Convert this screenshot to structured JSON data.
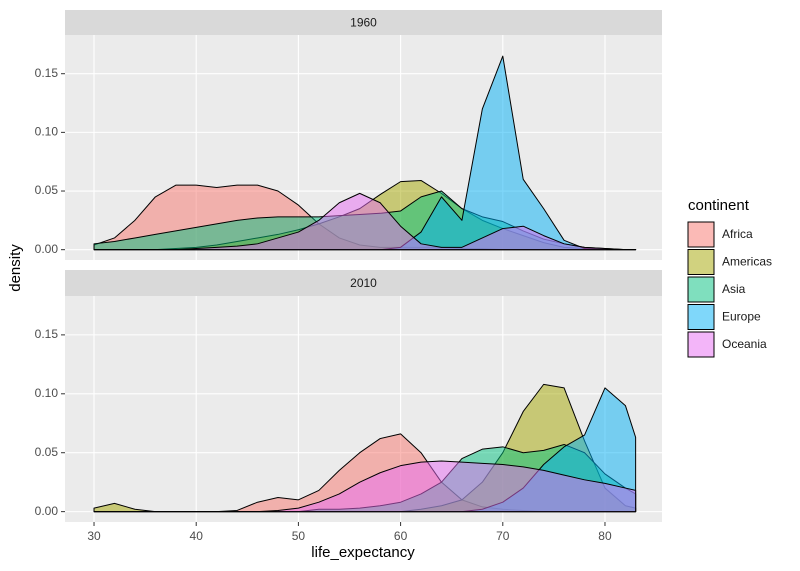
{
  "chart_data": {
    "type": "density",
    "x_label": "life_expectancy",
    "y_label": "density",
    "legend_title": "continent",
    "facets": [
      "1960",
      "2010"
    ],
    "x": [
      30,
      32,
      34,
      36,
      38,
      40,
      42,
      44,
      46,
      48,
      50,
      52,
      54,
      56,
      58,
      60,
      62,
      64,
      66,
      68,
      70,
      72,
      74,
      76,
      78,
      80,
      82,
      83
    ],
    "xlim": [
      27.16,
      85.58
    ],
    "ylim": [
      -0.0088,
      0.183
    ],
    "xticks": [
      30,
      40,
      50,
      60,
      70,
      80
    ],
    "yticks": [
      {
        "value": 0,
        "label": "0.00"
      },
      {
        "value": 0.05,
        "label": "0.05"
      },
      {
        "value": 0.1,
        "label": "0.10"
      },
      {
        "value": 0.15,
        "label": "0.15"
      }
    ],
    "grid": true,
    "series": [
      {
        "name": "Africa",
        "color": "#F8766D",
        "values": [
          [
            0.004,
            0.01,
            0.025,
            0.045,
            0.055,
            0.055,
            0.053,
            0.055,
            0.055,
            0.05,
            0.038,
            0.022,
            0.01,
            0.004,
            0.002,
            0.002,
            0.002,
            0.002,
            0.001,
            0.001,
            0,
            0,
            0,
            0,
            0,
            0,
            0,
            0
          ],
          [
            0,
            0,
            0,
            0,
            0,
            0,
            0,
            0.001,
            0.008,
            0.012,
            0.01,
            0.018,
            0.035,
            0.05,
            0.062,
            0.066,
            0.05,
            0.025,
            0.01,
            0.004,
            0.002,
            0.001,
            0,
            0,
            0,
            0,
            0,
            0
          ]
        ]
      },
      {
        "name": "Americas",
        "color": "#A3A500",
        "values": [
          [
            0,
            0,
            0,
            0,
            0.001,
            0.002,
            0.004,
            0.007,
            0.01,
            0.013,
            0.017,
            0.022,
            0.028,
            0.035,
            0.047,
            0.058,
            0.059,
            0.048,
            0.035,
            0.025,
            0.018,
            0.012,
            0.006,
            0.002,
            0.001,
            0,
            0,
            0
          ],
          [
            0.003,
            0.007,
            0.002,
            0,
            0,
            0,
            0,
            0,
            0,
            0,
            0,
            0,
            0,
            0,
            0,
            0,
            0.002,
            0.005,
            0.01,
            0.025,
            0.05,
            0.085,
            0.108,
            0.105,
            0.06,
            0.02,
            0.005,
            0.003
          ]
        ]
      },
      {
        "name": "Asia",
        "color": "#00BF7D",
        "values": [
          [
            0.005,
            0.007,
            0.01,
            0.013,
            0.016,
            0.019,
            0.022,
            0.025,
            0.027,
            0.028,
            0.028,
            0.028,
            0.029,
            0.03,
            0.031,
            0.033,
            0.045,
            0.05,
            0.035,
            0.028,
            0.024,
            0.016,
            0.009,
            0.005,
            0.002,
            0.001,
            0,
            0
          ],
          [
            0,
            0,
            0,
            0,
            0,
            0,
            0,
            0,
            0,
            0,
            0,
            0.002,
            0.002,
            0.003,
            0.005,
            0.008,
            0.015,
            0.025,
            0.045,
            0.053,
            0.055,
            0.05,
            0.052,
            0.057,
            0.05,
            0.032,
            0.02,
            0.015
          ]
        ]
      },
      {
        "name": "Europe",
        "color": "#00B0F6",
        "values": [
          [
            0,
            0,
            0,
            0,
            0,
            0,
            0,
            0,
            0,
            0,
            0,
            0,
            0,
            0,
            0,
            0.002,
            0.015,
            0.045,
            0.025,
            0.12,
            0.165,
            0.06,
            0.035,
            0.008,
            0.001,
            0,
            0,
            0
          ],
          [
            0,
            0,
            0,
            0,
            0,
            0,
            0,
            0,
            0,
            0,
            0,
            0,
            0,
            0,
            0,
            0,
            0,
            0,
            0,
            0.002,
            0.008,
            0.02,
            0.04,
            0.055,
            0.065,
            0.105,
            0.09,
            0.063
          ]
        ]
      },
      {
        "name": "Oceania",
        "color": "#E76BF3",
        "values": [
          [
            0,
            0,
            0,
            0,
            0,
            0.001,
            0.002,
            0.003,
            0.005,
            0.01,
            0.015,
            0.025,
            0.04,
            0.048,
            0.04,
            0.02,
            0.005,
            0.002,
            0.002,
            0.01,
            0.018,
            0.02,
            0.012,
            0.005,
            0.002,
            0.001,
            0,
            0
          ],
          [
            0,
            0,
            0,
            0,
            0,
            0,
            0,
            0,
            0,
            0.001,
            0.003,
            0.008,
            0.015,
            0.025,
            0.033,
            0.039,
            0.042,
            0.043,
            0.042,
            0.041,
            0.04,
            0.038,
            0.035,
            0.031,
            0.027,
            0.024,
            0.02,
            0.018
          ]
        ]
      }
    ]
  }
}
